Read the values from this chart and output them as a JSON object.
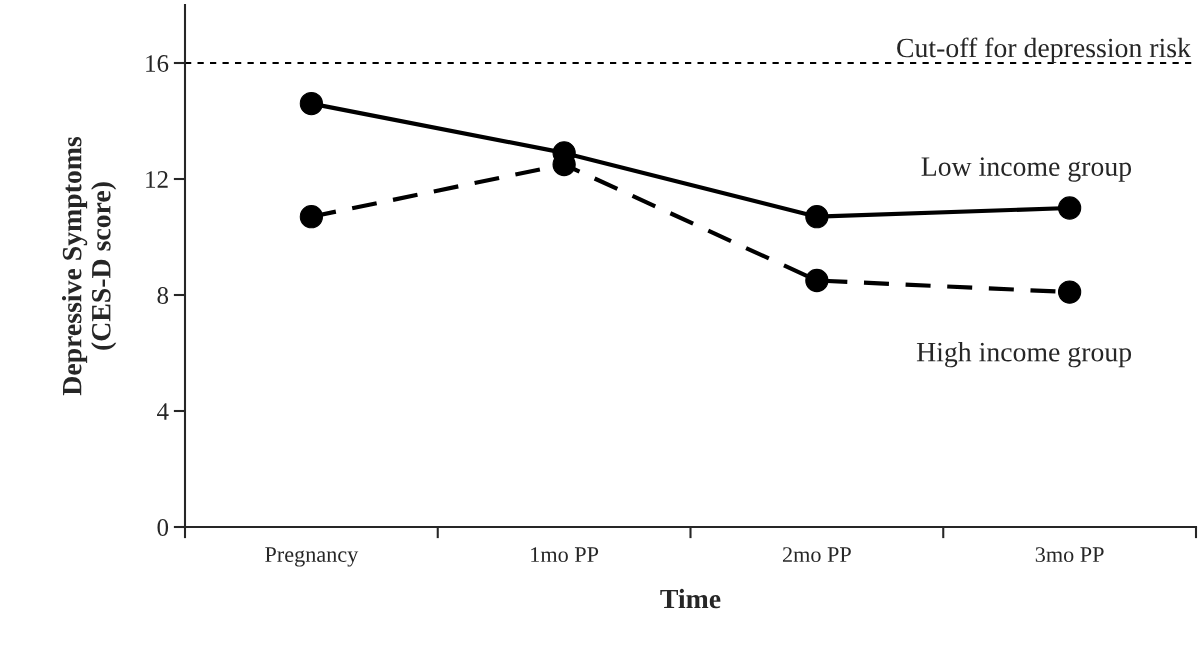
{
  "chart_data": {
    "type": "line",
    "xlabel": "Time",
    "ylabel": "Depressive Symptoms\n(CES-D score)",
    "categories": [
      "Pregnancy",
      "1mo PP",
      "2mo PP",
      "3mo PP"
    ],
    "series": [
      {
        "name": "Low income group",
        "color": "#000000",
        "values": [
          14.6,
          12.9,
          10.7,
          11.0
        ],
        "line_style": "solid"
      },
      {
        "name": "High income group",
        "color": "#000000",
        "values": [
          10.7,
          12.5,
          8.5,
          8.1
        ],
        "line_style": "dashed"
      }
    ],
    "ylim": [
      0,
      18
    ],
    "yticks": [
      0,
      4,
      8,
      12,
      16
    ],
    "marker": "circle",
    "grid": false,
    "legend": false,
    "ref_lines": [
      {
        "axis": "y",
        "value": 16,
        "label": "Cut-off for depression risk",
        "color": "#000000",
        "line_style": "dotted"
      }
    ]
  }
}
